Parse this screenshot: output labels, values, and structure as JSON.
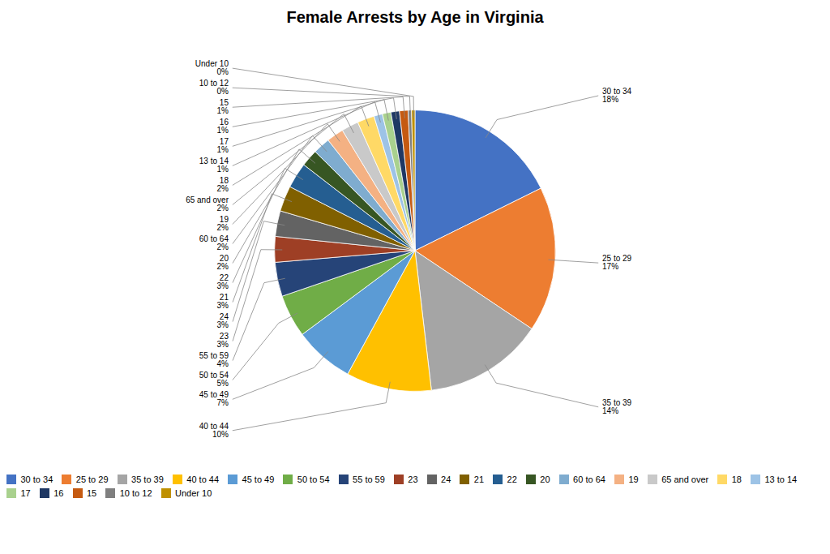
{
  "chart_data": {
    "type": "pie",
    "title": "Female Arrests by Age in Virginia",
    "categories": [
      "30 to 34",
      "25 to 29",
      "35 to 39",
      "40 to 44",
      "45 to 49",
      "50 to 54",
      "55 to 59",
      "23",
      "24",
      "21",
      "22",
      "20",
      "60 to 64",
      "19",
      "65 and over",
      "18",
      "13 to 14",
      "17",
      "16",
      "15",
      "10 to 12",
      "Under 10"
    ],
    "values": [
      18,
      17,
      14,
      10,
      7,
      5,
      4,
      3,
      3,
      3,
      3,
      2,
      2,
      2,
      2,
      2,
      1,
      1,
      1,
      1,
      0.4,
      0.4
    ],
    "value_labels": [
      "18%",
      "17%",
      "14%",
      "10%",
      "7%",
      "5%",
      "4%",
      "3%",
      "3%",
      "3%",
      "3%",
      "2%",
      "2%",
      "2%",
      "2%",
      "2%",
      "1%",
      "1%",
      "1%",
      "1%",
      "0%",
      "0%"
    ],
    "colors": [
      "#4472C4",
      "#ED7D31",
      "#A5A5A5",
      "#FFC000",
      "#5B9BD5",
      "#70AD47",
      "#264478",
      "#9E3F25",
      "#636363",
      "#806000",
      "#255E91",
      "#375623",
      "#7FACCF",
      "#F4B183",
      "#C9C9C9",
      "#FFD966",
      "#9DC3E6",
      "#A9D18E",
      "#1F3864",
      "#C55A11",
      "#7F7F7F",
      "#BF9000"
    ],
    "data_labels": true,
    "legend": "lower left"
  }
}
